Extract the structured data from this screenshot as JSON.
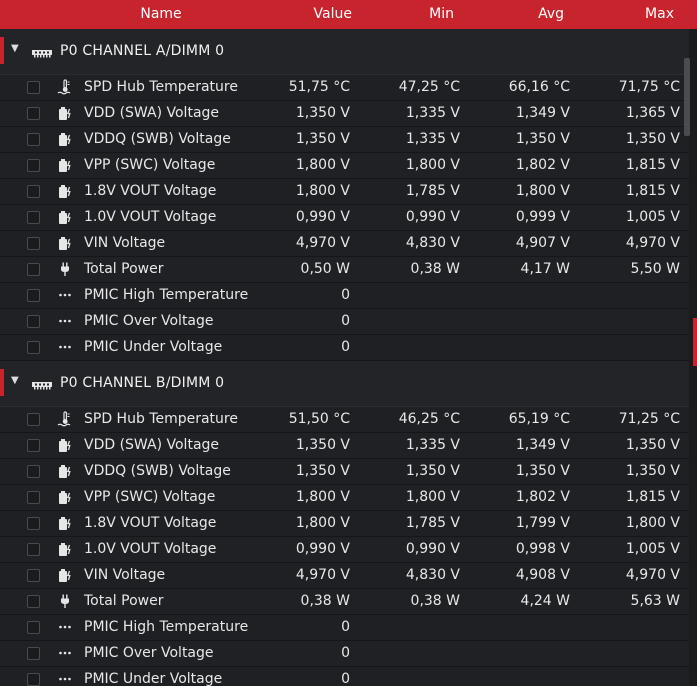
{
  "columns": {
    "name": "Name",
    "value": "Value",
    "min": "Min",
    "avg": "Avg",
    "max": "Max"
  },
  "colors": {
    "accent": "#c8242e",
    "background": "#1e1f21"
  },
  "groups": [
    {
      "title": "P0 CHANNEL A/DIMM 0",
      "rows": [
        {
          "icon": "temperature-icon",
          "name": "SPD Hub Temperature",
          "value": "51,75 °C",
          "min": "47,25 °C",
          "avg": "66,16 °C",
          "max": "71,75 °C"
        },
        {
          "icon": "voltage-icon",
          "name": "VDD (SWA) Voltage",
          "value": "1,350 V",
          "min": "1,335 V",
          "avg": "1,349 V",
          "max": "1,365 V"
        },
        {
          "icon": "voltage-icon",
          "name": "VDDQ (SWB) Voltage",
          "value": "1,350 V",
          "min": "1,335 V",
          "avg": "1,350 V",
          "max": "1,350 V"
        },
        {
          "icon": "voltage-icon",
          "name": "VPP (SWC) Voltage",
          "value": "1,800 V",
          "min": "1,800 V",
          "avg": "1,802 V",
          "max": "1,815 V"
        },
        {
          "icon": "voltage-icon",
          "name": "1.8V VOUT Voltage",
          "value": "1,800 V",
          "min": "1,785 V",
          "avg": "1,800 V",
          "max": "1,815 V"
        },
        {
          "icon": "voltage-icon",
          "name": "1.0V VOUT Voltage",
          "value": "0,990 V",
          "min": "0,990 V",
          "avg": "0,999 V",
          "max": "1,005 V"
        },
        {
          "icon": "voltage-icon",
          "name": "VIN Voltage",
          "value": "4,970 V",
          "min": "4,830 V",
          "avg": "4,907 V",
          "max": "4,970 V"
        },
        {
          "icon": "power-plug-icon",
          "name": "Total Power",
          "value": "0,50 W",
          "min": "0,38 W",
          "avg": "4,17 W",
          "max": "5,50 W"
        },
        {
          "icon": "dots-icon",
          "name": "PMIC High Temperature",
          "value": "0",
          "min": "",
          "avg": "",
          "max": ""
        },
        {
          "icon": "dots-icon",
          "name": "PMIC Over Voltage",
          "value": "0",
          "min": "",
          "avg": "",
          "max": ""
        },
        {
          "icon": "dots-icon",
          "name": "PMIC Under Voltage",
          "value": "0",
          "min": "",
          "avg": "",
          "max": ""
        }
      ]
    },
    {
      "title": "P0 CHANNEL B/DIMM 0",
      "rows": [
        {
          "icon": "temperature-icon",
          "name": "SPD Hub Temperature",
          "value": "51,50 °C",
          "min": "46,25 °C",
          "avg": "65,19 °C",
          "max": "71,25 °C"
        },
        {
          "icon": "voltage-icon",
          "name": "VDD (SWA) Voltage",
          "value": "1,350 V",
          "min": "1,335 V",
          "avg": "1,349 V",
          "max": "1,350 V"
        },
        {
          "icon": "voltage-icon",
          "name": "VDDQ (SWB) Voltage",
          "value": "1,350 V",
          "min": "1,350 V",
          "avg": "1,350 V",
          "max": "1,350 V"
        },
        {
          "icon": "voltage-icon",
          "name": "VPP (SWC) Voltage",
          "value": "1,800 V",
          "min": "1,800 V",
          "avg": "1,802 V",
          "max": "1,815 V"
        },
        {
          "icon": "voltage-icon",
          "name": "1.8V VOUT Voltage",
          "value": "1,800 V",
          "min": "1,785 V",
          "avg": "1,799 V",
          "max": "1,800 V"
        },
        {
          "icon": "voltage-icon",
          "name": "1.0V VOUT Voltage",
          "value": "0,990 V",
          "min": "0,990 V",
          "avg": "0,998 V",
          "max": "1,005 V"
        },
        {
          "icon": "voltage-icon",
          "name": "VIN Voltage",
          "value": "4,970 V",
          "min": "4,830 V",
          "avg": "4,908 V",
          "max": "4,970 V"
        },
        {
          "icon": "power-plug-icon",
          "name": "Total Power",
          "value": "0,38 W",
          "min": "0,38 W",
          "avg": "4,24 W",
          "max": "5,63 W"
        },
        {
          "icon": "dots-icon",
          "name": "PMIC High Temperature",
          "value": "0",
          "min": "",
          "avg": "",
          "max": ""
        },
        {
          "icon": "dots-icon",
          "name": "PMIC Over Voltage",
          "value": "0",
          "min": "",
          "avg": "",
          "max": ""
        },
        {
          "icon": "dots-icon",
          "name": "PMIC Under Voltage",
          "value": "0",
          "min": "",
          "avg": "",
          "max": ""
        }
      ]
    }
  ]
}
